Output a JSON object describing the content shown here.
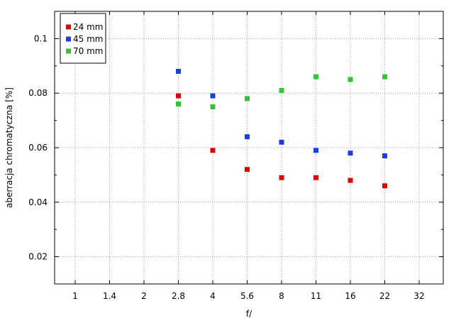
{
  "chart_data": {
    "type": "scatter",
    "xlabel": "f/",
    "ylabel": "aberracja chromatyczna [%]",
    "x_ticks": [
      "1",
      "1.4",
      "2",
      "2.8",
      "4",
      "5.6",
      "8",
      "11",
      "16",
      "22",
      "32"
    ],
    "y_ticks": [
      "0.02",
      "0.04",
      "0.06",
      "0.08",
      "0.1"
    ],
    "ylim": [
      0.01,
      0.11
    ],
    "grid": true,
    "legend_position": "top-left",
    "series": [
      {
        "name": "24 mm",
        "color": "#e00000",
        "x": [
          "2.8",
          "4",
          "5.6",
          "8",
          "11",
          "16",
          "22"
        ],
        "y": [
          0.079,
          0.059,
          0.052,
          0.049,
          0.049,
          0.048,
          0.046
        ]
      },
      {
        "name": "45 mm",
        "color": "#1a3ee0",
        "x": [
          "2.8",
          "4",
          "5.6",
          "8",
          "11",
          "16",
          "22"
        ],
        "y": [
          0.088,
          0.079,
          0.064,
          0.062,
          0.059,
          0.058,
          0.057
        ]
      },
      {
        "name": "70 mm",
        "color": "#33c433",
        "x": [
          "2.8",
          "4",
          "5.6",
          "8",
          "11",
          "16",
          "22"
        ],
        "y": [
          0.076,
          0.075,
          0.078,
          0.081,
          0.086,
          0.085,
          0.086
        ]
      }
    ]
  }
}
